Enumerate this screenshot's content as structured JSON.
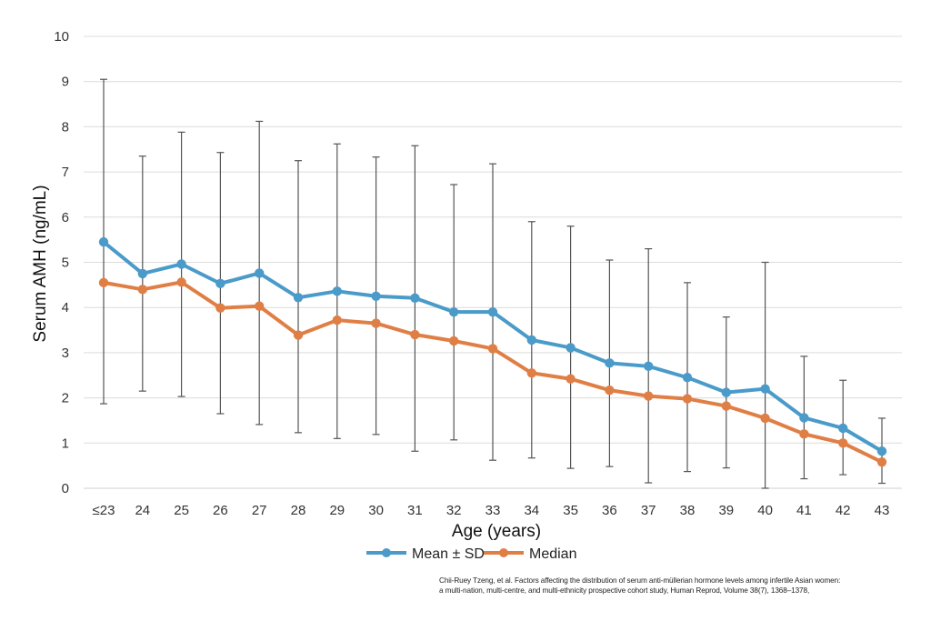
{
  "chart_data": {
    "type": "line",
    "categories": [
      "≤23",
      "24",
      "25",
      "26",
      "27",
      "28",
      "29",
      "30",
      "31",
      "32",
      "33",
      "34",
      "35",
      "36",
      "37",
      "38",
      "39",
      "40",
      "41",
      "42",
      "43"
    ],
    "series": [
      {
        "name": "Mean ± SD",
        "color": "#4A9BC9",
        "values": [
          5.45,
          4.75,
          4.96,
          4.53,
          4.76,
          4.22,
          4.36,
          4.25,
          4.21,
          3.9,
          3.9,
          3.28,
          3.11,
          2.77,
          2.7,
          2.45,
          2.12,
          2.2,
          1.56,
          1.33,
          0.82
        ],
        "error_upper": [
          9.05,
          7.35,
          7.88,
          7.43,
          8.12,
          7.25,
          7.62,
          7.33,
          7.58,
          6.72,
          7.18,
          5.9,
          5.8,
          5.05,
          5.3,
          4.55,
          3.79,
          5.0,
          2.92,
          2.39,
          1.55
        ],
        "error_lower": [
          1.87,
          2.15,
          2.03,
          1.65,
          1.41,
          1.23,
          1.1,
          1.19,
          0.82,
          1.07,
          0.62,
          0.67,
          0.44,
          0.48,
          0.12,
          0.37,
          0.45,
          0.0,
          0.21,
          0.3,
          0.11
        ]
      },
      {
        "name": "Median",
        "color": "#E07F45",
        "values": [
          4.55,
          4.4,
          4.56,
          3.99,
          4.03,
          3.39,
          3.72,
          3.65,
          3.4,
          3.26,
          3.09,
          2.55,
          2.42,
          2.17,
          2.04,
          1.98,
          1.82,
          1.55,
          1.2,
          1.0,
          0.58
        ]
      }
    ],
    "xlabel": "Age (years)",
    "ylabel": "Serum AMH (ng/mL)",
    "ylim": [
      0,
      10
    ],
    "yticks": [
      0,
      1,
      2,
      3,
      4,
      5,
      6,
      7,
      8,
      9,
      10
    ],
    "grid": true,
    "legend_position": "bottom"
  },
  "citation": {
    "line1": "Chii-Ruey Tzeng, et al. Factors affecting the distribution of serum anti-müllerian hormone levels among infertile Asian women:",
    "line2": "a multi-nation, multi-centre, and multi-ethnicity prospective cohort study, Human Reprod, Volume 38(7), 1368–1378,"
  }
}
